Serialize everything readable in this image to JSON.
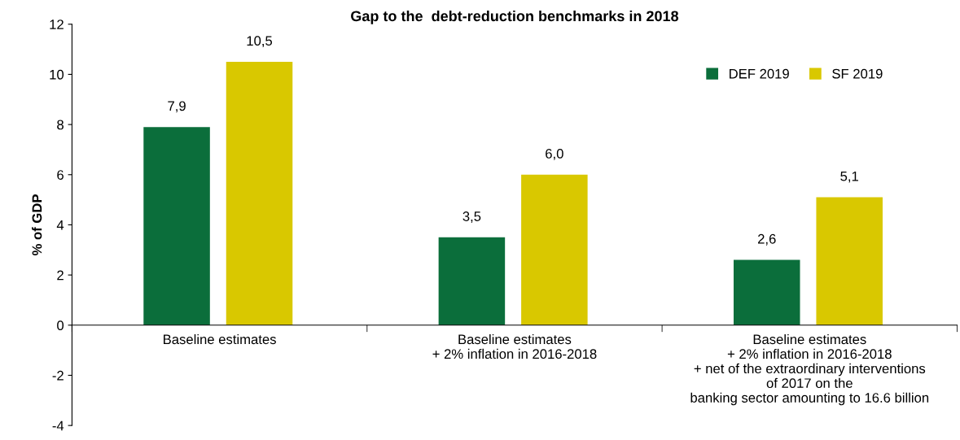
{
  "chart_data": {
    "type": "bar",
    "title": "Gap to the  debt-reduction benchmarks in 2018",
    "ylabel": "% of GDP",
    "categories": [
      "Baseline estimates",
      "Baseline estimates\n+ 2% inflation in 2016-2018",
      "Baseline estimates\n+ 2% inflation in 2016-2018\n+ net of the extraordinary interventions\nof 2017 on the\nbanking sector amounting to 16.6 billion"
    ],
    "series": [
      {
        "name": "DEF 2019",
        "color": "#0b6e3b",
        "values": [
          7.9,
          3.5,
          2.6
        ],
        "value_labels": [
          "7,9",
          "3,5",
          "2,6"
        ]
      },
      {
        "name": "SF 2019",
        "color": "#d9c800",
        "values": [
          10.5,
          6.0,
          5.1
        ],
        "value_labels": [
          "10,5",
          "6,0",
          "5,1"
        ]
      }
    ],
    "ylim": [
      -4,
      12
    ],
    "yticks": [
      -4,
      -2,
      0,
      2,
      4,
      6,
      8,
      10,
      12
    ],
    "grid": false,
    "legend": "top right"
  }
}
